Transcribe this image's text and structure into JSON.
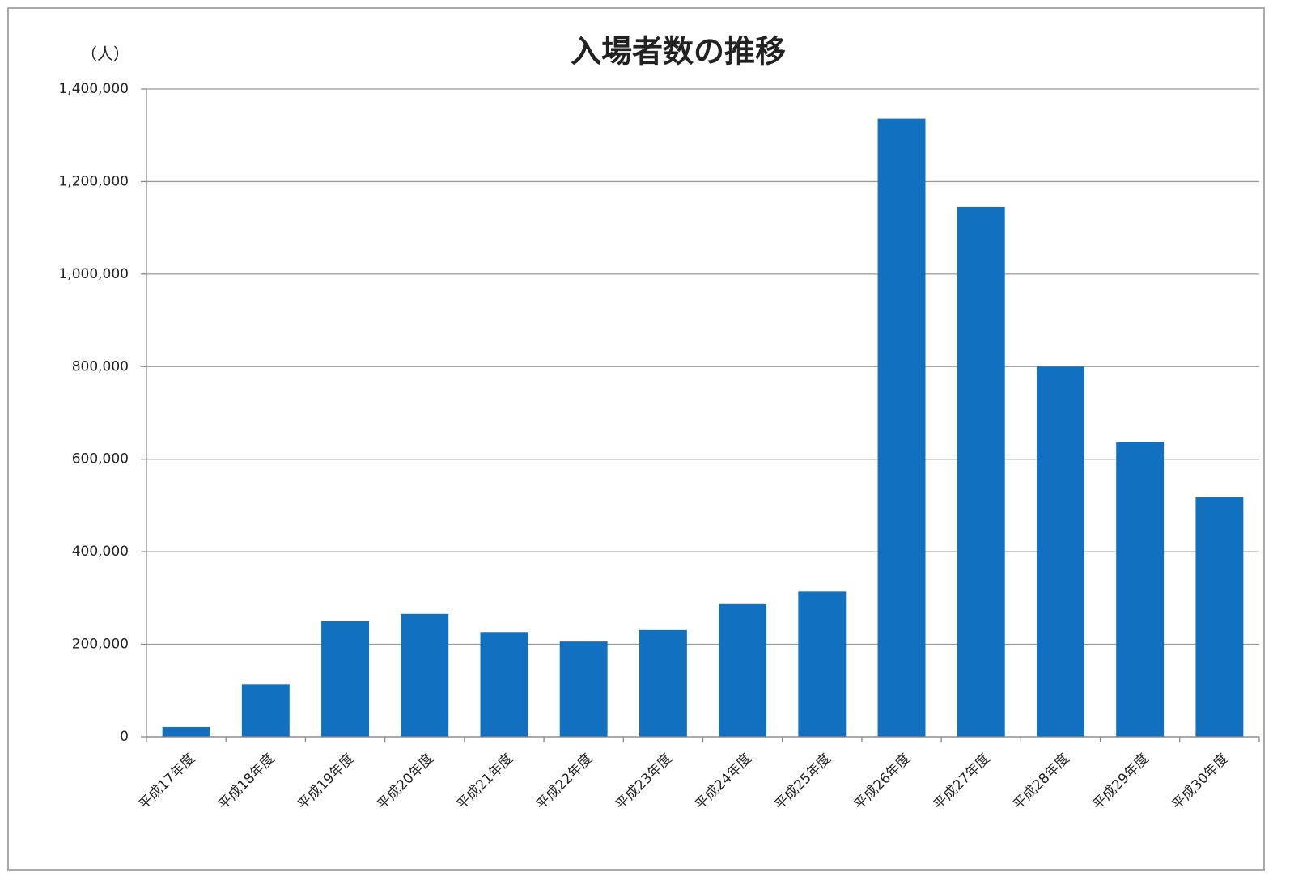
{
  "chart_data": {
    "type": "bar",
    "title": "入場者数の推移",
    "y_label": "（人）",
    "categories": [
      "平成17年度",
      "平成18年度",
      "平成19年度",
      "平成20年度",
      "平成21年度",
      "平成22年度",
      "平成23年度",
      "平成24年度",
      "平成25年度",
      "平成26年度",
      "平成27年度",
      "平成28年度",
      "平成29年度",
      "平成30年度"
    ],
    "values": [
      21000,
      113000,
      250000,
      266000,
      225000,
      206000,
      231000,
      287000,
      314000,
      1336000,
      1145000,
      800000,
      637000,
      518000
    ],
    "color": "#1170c0",
    "ylim": [
      0,
      1400000
    ],
    "yticks": [
      0,
      {
        "value": 200000,
        "label": "200,000"
      },
      {
        "value": 400000,
        "label": "400,000"
      },
      {
        "value": 600000,
        "label": "600,000"
      },
      {
        "value": 800000,
        "label": "800,000"
      },
      {
        "value": 1000000,
        "label": "1,000,000"
      },
      {
        "value": 1200000,
        "label": "1,200,000"
      },
      {
        "value": 1400000,
        "label": "1,400,000"
      }
    ],
    "grid": true
  }
}
